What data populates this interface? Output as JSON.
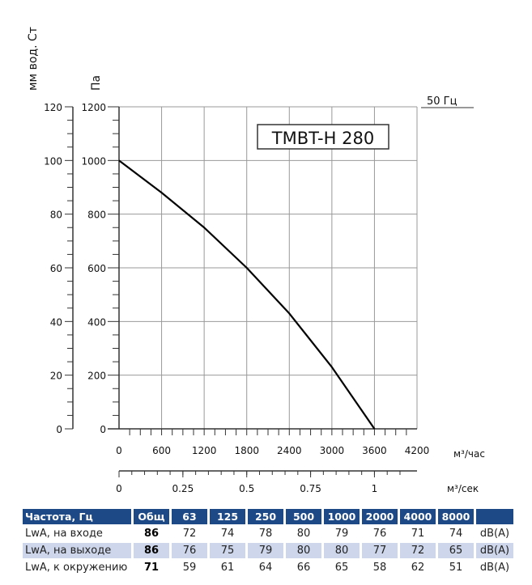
{
  "chart_data": {
    "type": "line",
    "title": "TMBT-H 280",
    "frequency_label": "50 Гц",
    "ylabel_left": "мм вод. Ст",
    "ylabel": "Па",
    "xlabel": "м³/час",
    "xlabel2": "м³/сек",
    "xlim": [
      0,
      4200
    ],
    "ylim": [
      0,
      1200
    ],
    "x_ticks": [
      0,
      600,
      1200,
      1800,
      2400,
      3000,
      3600,
      4200
    ],
    "y_ticks": [
      0,
      200,
      400,
      600,
      800,
      1000,
      1200
    ],
    "y2_ticks": [
      0,
      20,
      40,
      60,
      80,
      100,
      120
    ],
    "x2_ticks": [
      "0",
      "0.25",
      "0.5",
      "0.75",
      "1"
    ],
    "x2_values": [
      0,
      0.25,
      0.5,
      0.75,
      1
    ],
    "grid": true,
    "series": [
      {
        "name": "TMBT-H 280",
        "x": [
          0,
          600,
          1200,
          1800,
          2400,
          3000,
          3600
        ],
        "y": [
          1000,
          880,
          750,
          600,
          430,
          230,
          0
        ]
      }
    ]
  },
  "table": {
    "headers": [
      "Частота, Гц",
      "Общ",
      "63",
      "125",
      "250",
      "500",
      "1000",
      "2000",
      "4000",
      "8000",
      ""
    ],
    "rows": [
      {
        "label": "LwA, на входе",
        "total": "86",
        "values": [
          "72",
          "74",
          "78",
          "80",
          "79",
          "76",
          "71",
          "74"
        ],
        "unit": "dB(A)"
      },
      {
        "label": "LwA, на выходе",
        "total": "86",
        "values": [
          "76",
          "75",
          "79",
          "80",
          "80",
          "77",
          "72",
          "65"
        ],
        "unit": "dB(A)"
      },
      {
        "label": "LwA, к окружению",
        "total": "71",
        "values": [
          "59",
          "61",
          "64",
          "66",
          "65",
          "58",
          "62",
          "51"
        ],
        "unit": "dB(A)"
      }
    ]
  }
}
